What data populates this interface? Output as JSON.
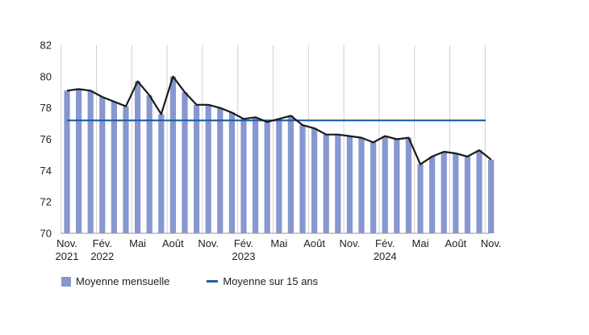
{
  "chart_data": {
    "type": "bar",
    "ylim": [
      70,
      82
    ],
    "yticks": [
      70,
      72,
      74,
      76,
      78,
      80,
      82
    ],
    "grid": "vertical",
    "x_tick_labels": [
      {
        "index": 0,
        "lines": [
          "Nov.",
          "2021"
        ]
      },
      {
        "index": 3,
        "lines": [
          "Fév.",
          "2022"
        ]
      },
      {
        "index": 6,
        "lines": [
          "Mai"
        ]
      },
      {
        "index": 9,
        "lines": [
          "Août"
        ]
      },
      {
        "index": 12,
        "lines": [
          "Nov."
        ]
      },
      {
        "index": 15,
        "lines": [
          "Fév.",
          "2023"
        ]
      },
      {
        "index": 18,
        "lines": [
          "Mai"
        ]
      },
      {
        "index": 21,
        "lines": [
          "Août"
        ]
      },
      {
        "index": 24,
        "lines": [
          "Nov."
        ]
      },
      {
        "index": 27,
        "lines": [
          "Fév.",
          "2024"
        ]
      },
      {
        "index": 30,
        "lines": [
          "Mai"
        ]
      },
      {
        "index": 33,
        "lines": [
          "Août"
        ]
      },
      {
        "index": 36,
        "lines": [
          "Nov."
        ]
      }
    ],
    "series": [
      {
        "name": "Moyenne mensuelle",
        "type": "bar",
        "values": [
          79.1,
          79.2,
          79.1,
          78.7,
          78.4,
          78.1,
          79.7,
          78.8,
          77.6,
          80.0,
          79.0,
          78.2,
          78.2,
          78.0,
          77.7,
          77.3,
          77.4,
          77.1,
          77.3,
          77.5,
          76.9,
          76.7,
          76.3,
          76.3,
          76.2,
          76.1,
          75.8,
          76.2,
          76.0,
          76.1,
          74.4,
          74.9,
          75.2,
          75.1,
          74.9,
          75.3,
          74.7
        ]
      },
      {
        "type": "line",
        "values": [
          79.1,
          79.2,
          79.1,
          78.7,
          78.4,
          78.1,
          79.7,
          78.8,
          77.6,
          80.0,
          79.0,
          78.2,
          78.2,
          78.0,
          77.7,
          77.3,
          77.4,
          77.1,
          77.3,
          77.5,
          76.9,
          76.7,
          76.3,
          76.3,
          76.2,
          76.1,
          75.8,
          76.2,
          76.0,
          76.1,
          74.4,
          74.9,
          75.2,
          75.1,
          74.9,
          75.3,
          74.7
        ]
      },
      {
        "name": "Moyenne sur 15 ans",
        "type": "hline",
        "value": 77.2
      }
    ],
    "colors": {
      "bar": "#8797cf",
      "line": "#1a1a1a",
      "average": "#1f5fa6",
      "grid": "#d0d0d0",
      "axis": "#9a9a9a"
    }
  },
  "legend": {
    "monthly_label": "Moyenne mensuelle",
    "average_label": "Moyenne sur 15 ans"
  }
}
